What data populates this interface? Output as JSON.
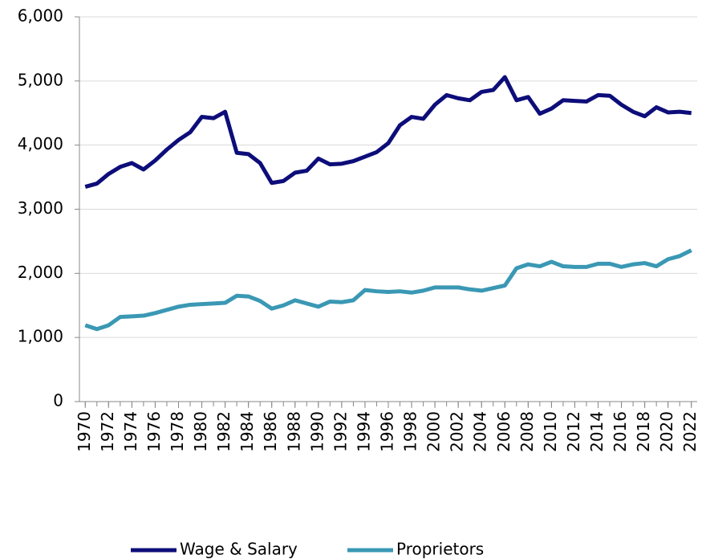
{
  "chart_data": {
    "type": "line",
    "x": [
      1970,
      1971,
      1972,
      1973,
      1974,
      1975,
      1976,
      1977,
      1978,
      1979,
      1980,
      1981,
      1982,
      1983,
      1984,
      1985,
      1986,
      1987,
      1988,
      1989,
      1990,
      1991,
      1992,
      1993,
      1994,
      1995,
      1996,
      1997,
      1998,
      1999,
      2000,
      2001,
      2002,
      2003,
      2004,
      2005,
      2006,
      2007,
      2008,
      2009,
      2010,
      2011,
      2012,
      2013,
      2014,
      2015,
      2016,
      2017,
      2018,
      2019,
      2020,
      2021,
      2022
    ],
    "series": [
      {
        "name": "Wage & Salary",
        "color": "#0d0d7a",
        "values": [
          3350,
          3400,
          3550,
          3660,
          3720,
          3620,
          3760,
          3930,
          4080,
          4200,
          4440,
          4420,
          4520,
          3880,
          3860,
          3720,
          3410,
          3440,
          3570,
          3600,
          3790,
          3700,
          3710,
          3750,
          3820,
          3890,
          4030,
          4310,
          4440,
          4410,
          4630,
          4780,
          4730,
          4700,
          4830,
          4860,
          5060,
          4700,
          4750,
          4490,
          4570,
          4700,
          4690,
          4680,
          4780,
          4770,
          4630,
          4520,
          4450,
          4590,
          4510,
          4520,
          4500
        ]
      },
      {
        "name": "Proprietors",
        "color": "#3a98b4",
        "values": [
          1190,
          1130,
          1190,
          1320,
          1330,
          1340,
          1380,
          1430,
          1480,
          1510,
          1520,
          1530,
          1540,
          1650,
          1640,
          1570,
          1450,
          1500,
          1580,
          1530,
          1480,
          1560,
          1550,
          1580,
          1740,
          1720,
          1710,
          1720,
          1700,
          1730,
          1780,
          1780,
          1780,
          1750,
          1730,
          1770,
          1810,
          2080,
          2140,
          2110,
          2180,
          2110,
          2100,
          2100,
          2150,
          2150,
          2100,
          2140,
          2160,
          2110,
          2220,
          2270,
          2360
        ]
      }
    ],
    "xlim": [
      1969.5,
      2022.5
    ],
    "xticks": [
      1970,
      1972,
      1974,
      1976,
      1978,
      1980,
      1982,
      1984,
      1986,
      1988,
      1990,
      1992,
      1994,
      1996,
      1998,
      2000,
      2002,
      2004,
      2006,
      2008,
      2010,
      2012,
      2014,
      2016,
      2018,
      2020,
      2022
    ],
    "ylim": [
      0,
      6000
    ],
    "yticks": [
      0,
      {
        "value": 1000,
        "label": "1,000"
      },
      {
        "value": 2000,
        "label": "2,000"
      },
      {
        "value": 3000,
        "label": "3,000"
      },
      {
        "value": 4000,
        "label": "4,000"
      },
      {
        "value": 5000,
        "label": "5,000"
      },
      {
        "value": 6000,
        "label": "6,000"
      }
    ],
    "grid": true,
    "legend": "bottom"
  }
}
